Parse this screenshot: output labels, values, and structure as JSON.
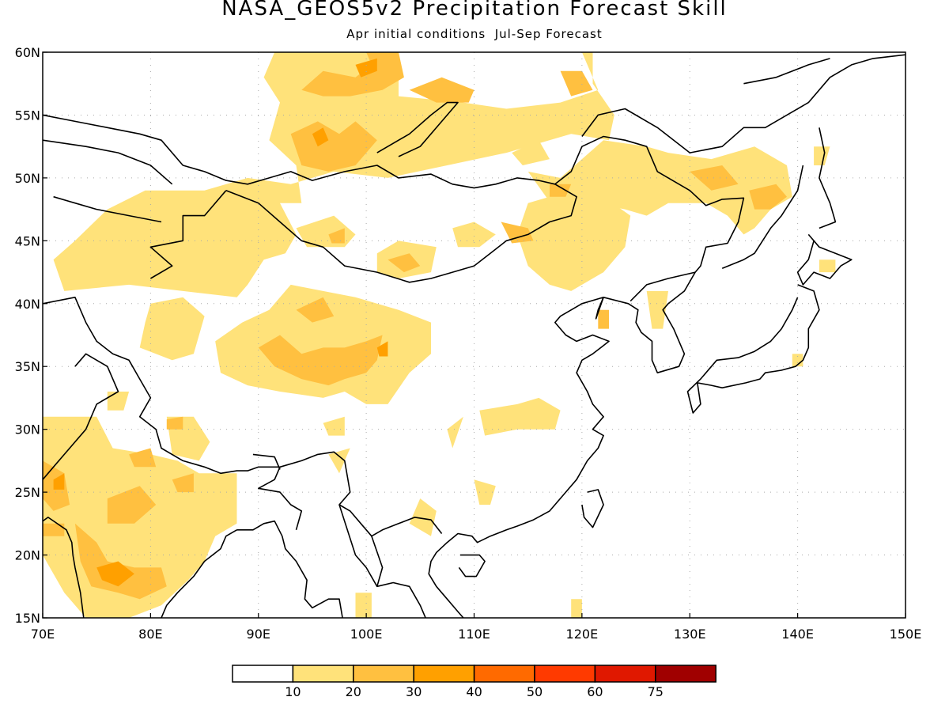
{
  "title": "NASA_GEOS5v2 Precipitation Forecast Skill",
  "subtitle": "Apr initial conditions  Jul-Sep Forecast",
  "map": {
    "lon_range": [
      70,
      150
    ],
    "lat_range": [
      15,
      60
    ],
    "x_ticks": [
      {
        "value": 70,
        "label": "70E"
      },
      {
        "value": 80,
        "label": "80E"
      },
      {
        "value": 90,
        "label": "90E"
      },
      {
        "value": 100,
        "label": "100E"
      },
      {
        "value": 110,
        "label": "110E"
      },
      {
        "value": 120,
        "label": "120E"
      },
      {
        "value": 130,
        "label": "130E"
      },
      {
        "value": 140,
        "label": "140E"
      },
      {
        "value": 150,
        "label": "150E"
      }
    ],
    "y_ticks": [
      {
        "value": 15,
        "label": "15N"
      },
      {
        "value": 20,
        "label": "20N"
      },
      {
        "value": 25,
        "label": "25N"
      },
      {
        "value": 30,
        "label": "30N"
      },
      {
        "value": 35,
        "label": "35N"
      },
      {
        "value": 40,
        "label": "40N"
      },
      {
        "value": 45,
        "label": "45N"
      },
      {
        "value": 50,
        "label": "50N"
      },
      {
        "value": 55,
        "label": "55N"
      },
      {
        "value": 60,
        "label": "60N"
      }
    ],
    "grid": "dotted"
  },
  "colors": {
    "lt10": "#ffffff",
    "c10": "#ffe27a",
    "c20": "#ffc040",
    "c30": "#ffa000",
    "c40": "#ff6a00",
    "c50": "#ff3a00",
    "c60": "#e01800",
    "c75": "#a00000"
  },
  "legend": {
    "bins": [
      {
        "color": "#ffffff"
      },
      {
        "color": "#ffe27a"
      },
      {
        "color": "#ffc040"
      },
      {
        "color": "#ffa000"
      },
      {
        "color": "#ff6a00"
      },
      {
        "color": "#ff3a00"
      },
      {
        "color": "#e01800"
      },
      {
        "color": "#a00000"
      }
    ],
    "labels": [
      "10",
      "20",
      "30",
      "40",
      "50",
      "60",
      "75"
    ]
  }
}
